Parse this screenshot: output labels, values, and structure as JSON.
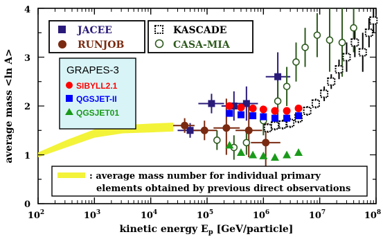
{
  "chart_data": {
    "type": "scatter",
    "xscale": "log",
    "xlim_exp": [
      2,
      8
    ],
    "ylim": [
      0,
      4
    ],
    "xlabel": "kinetic energy E",
    "xlabel_sub": "p",
    "xlabel_unit": " [GeV/particle]",
    "ylabel": "average mass <ln A>",
    "x_tick_labels": [
      "10",
      "10",
      "10",
      "10",
      "10",
      "10",
      "10"
    ],
    "x_tick_exponents": [
      "2",
      "3",
      "4",
      "5",
      "6",
      "7",
      "8"
    ],
    "y_tick_labels": [
      "0",
      "1",
      "2",
      "3",
      "4"
    ],
    "legend_box1": [
      {
        "name": "JACEE",
        "color": "#2a1a7a",
        "marker": "square-filled"
      },
      {
        "name": "RUNJOB",
        "color": "#7a2a10",
        "marker": "circle-filled"
      }
    ],
    "legend_box2": [
      {
        "name": "KASCADE",
        "color": "#000000",
        "marker": "square-dotted"
      },
      {
        "name": "CASA-MIA",
        "color": "#2e5a1e",
        "marker": "circle-open"
      }
    ],
    "legend_box3": {
      "title": "GRAPES-3",
      "entries": [
        {
          "name": "SIBYLL2.1",
          "color": "#ff0000",
          "marker": "circle"
        },
        {
          "name": "QGSJET-II",
          "color": "#0000ff",
          "marker": "square"
        },
        {
          "name": "QGSJET01",
          "color": "#1a9a1a",
          "marker": "triangle"
        }
      ]
    },
    "band_note": {
      "line1": ": average mass number for individual primary",
      "line2": "elements obtained by previous direct observations"
    },
    "direct_band": {
      "color": "#f3f33a",
      "log_e": [
        2.0,
        2.5,
        3.0,
        3.5,
        4.0,
        4.4
      ],
      "lower": [
        0.95,
        1.15,
        1.35,
        1.44,
        1.46,
        1.48
      ],
      "upper": [
        1.05,
        1.3,
        1.52,
        1.61,
        1.64,
        1.66
      ]
    },
    "series": [
      {
        "name": "JACEE",
        "marker": "square",
        "color": "#2a1a7a",
        "points": [
          {
            "x": 50000,
            "y": 1.5,
            "xerr": [
              30000,
              80000
            ],
            "yerr": [
              1.35,
              1.65
            ]
          },
          {
            "x": 120000,
            "y": 2.05,
            "xerr": [
              70000,
              200000
            ],
            "yerr": [
              1.85,
              2.25
            ]
          },
          {
            "x": 300000,
            "y": 2.0,
            "xerr": [
              180000,
              500000
            ],
            "yerr": [
              1.7,
              2.3
            ]
          },
          {
            "x": 500000,
            "y": 2.05,
            "xerr": [
              300000,
              800000
            ],
            "yerr": [
              1.7,
              2.4
            ]
          },
          {
            "x": 1800000,
            "y": 2.6,
            "xerr": [
              1100000,
              3000000
            ],
            "yerr": [
              2.1,
              3.1
            ]
          }
        ]
      },
      {
        "name": "RUNJOB",
        "marker": "circle",
        "color": "#7a2a10",
        "points": [
          {
            "x": 40000,
            "y": 1.6,
            "xerr": [
              25000,
              60000
            ],
            "yerr": [
              1.45,
              1.75
            ]
          },
          {
            "x": 90000,
            "y": 1.5,
            "xerr": [
              55000,
              150000
            ],
            "yerr": [
              1.3,
              1.7
            ]
          },
          {
            "x": 220000,
            "y": 1.55,
            "xerr": [
              130000,
              380000
            ],
            "yerr": [
              1.0,
              2.15
            ]
          },
          {
            "x": 550000,
            "y": 1.5,
            "xerr": [
              320000,
              950000
            ],
            "yerr": [
              0.95,
              2.05
            ]
          },
          {
            "x": 1100000,
            "y": 1.25,
            "xerr": [
              600000,
              2000000
            ],
            "yerr": [
              0.7,
              1.8
            ]
          }
        ]
      },
      {
        "name": "KASCADE",
        "marker": "square-dotted",
        "color": "#000000",
        "points": [
          {
            "x": 1200000,
            "y": 1.55,
            "yerr": [
              1.45,
              1.65
            ]
          },
          {
            "x": 1600000,
            "y": 1.6,
            "yerr": [
              1.5,
              1.7
            ]
          },
          {
            "x": 2200000,
            "y": 1.62,
            "yerr": [
              1.52,
              1.72
            ]
          },
          {
            "x": 3000000,
            "y": 1.65,
            "yerr": [
              1.55,
              1.75
            ]
          },
          {
            "x": 4200000,
            "y": 1.75,
            "yerr": [
              1.65,
              1.85
            ]
          },
          {
            "x": 6000000,
            "y": 1.9,
            "yerr": [
              1.8,
              2.0
            ]
          },
          {
            "x": 8500000,
            "y": 2.05,
            "yerr": [
              1.95,
              2.15
            ]
          },
          {
            "x": 12000000,
            "y": 2.25,
            "yerr": [
              2.1,
              2.4
            ]
          },
          {
            "x": 16000000,
            "y": 2.5,
            "yerr": [
              2.35,
              2.65
            ]
          },
          {
            "x": 22000000,
            "y": 2.75,
            "yerr": [
              2.55,
              2.95
            ]
          },
          {
            "x": 30000000,
            "y": 3.0,
            "yerr": [
              2.7,
              3.3
            ]
          },
          {
            "x": 42000000,
            "y": 3.3,
            "yerr": [
              3.0,
              3.6
            ]
          },
          {
            "x": 58000000,
            "y": 3.1,
            "yerr": [
              2.7,
              3.5
            ]
          },
          {
            "x": 75000000,
            "y": 3.5,
            "yerr": [
              3.2,
              3.8
            ]
          },
          {
            "x": 90000000,
            "y": 3.75,
            "yerr": [
              3.5,
              4.0
            ]
          }
        ]
      },
      {
        "name": "CASA-MIA",
        "marker": "circle-open",
        "color": "#2e5a1e",
        "points": [
          {
            "x": 150000,
            "y": 1.3,
            "yerr": [
              1.1,
              1.5
            ]
          },
          {
            "x": 300000,
            "y": 1.15,
            "yerr": [
              0.9,
              1.4
            ]
          },
          {
            "x": 500000,
            "y": 1.25,
            "yerr": [
              1.0,
              1.5
            ]
          },
          {
            "x": 1000000,
            "y": 1.7,
            "yerr": [
              1.4,
              2.0
            ]
          },
          {
            "x": 1800000,
            "y": 2.1,
            "yerr": [
              1.7,
              2.5
            ]
          },
          {
            "x": 2600000,
            "y": 2.4,
            "yerr": [
              2.0,
              2.8
            ]
          },
          {
            "x": 3800000,
            "y": 2.9,
            "yerr": [
              2.5,
              3.3
            ]
          },
          {
            "x": 5500000,
            "y": 3.2,
            "yerr": [
              2.8,
              3.6
            ]
          },
          {
            "x": 9000000,
            "y": 3.45,
            "yerr": [
              3.0,
              3.9
            ]
          },
          {
            "x": 15000000,
            "y": 3.35,
            "yerr": [
              2.7,
              4.0
            ]
          },
          {
            "x": 25000000,
            "y": 3.3,
            "yerr": [
              2.6,
              4.0
            ]
          },
          {
            "x": 40000000,
            "y": 3.6,
            "yerr": [
              3.1,
              4.0
            ]
          }
        ]
      },
      {
        "name": "SIBYLL2.1",
        "marker": "circle",
        "color": "#ff0000",
        "points": [
          {
            "x": 250000,
            "y": 2.0
          },
          {
            "x": 400000,
            "y": 1.97
          },
          {
            "x": 650000,
            "y": 1.95
          },
          {
            "x": 1000000,
            "y": 1.93
          },
          {
            "x": 1600000,
            "y": 1.9
          },
          {
            "x": 2600000,
            "y": 1.9
          },
          {
            "x": 4200000,
            "y": 1.95
          }
        ]
      },
      {
        "name": "QGSJET-II",
        "marker": "square",
        "color": "#0000ff",
        "points": [
          {
            "x": 250000,
            "y": 1.85
          },
          {
            "x": 400000,
            "y": 1.82
          },
          {
            "x": 650000,
            "y": 1.8
          },
          {
            "x": 1000000,
            "y": 1.78
          },
          {
            "x": 1600000,
            "y": 1.75
          },
          {
            "x": 2600000,
            "y": 1.75
          },
          {
            "x": 4200000,
            "y": 1.8
          }
        ]
      },
      {
        "name": "QGSJET01",
        "marker": "triangle",
        "color": "#1a9a1a",
        "points": [
          {
            "x": 250000,
            "y": 1.2
          },
          {
            "x": 400000,
            "y": 1.05
          },
          {
            "x": 650000,
            "y": 1.0
          },
          {
            "x": 1000000,
            "y": 0.98
          },
          {
            "x": 1600000,
            "y": 0.95
          },
          {
            "x": 2600000,
            "y": 1.0
          },
          {
            "x": 4200000,
            "y": 1.05
          }
        ]
      }
    ]
  }
}
